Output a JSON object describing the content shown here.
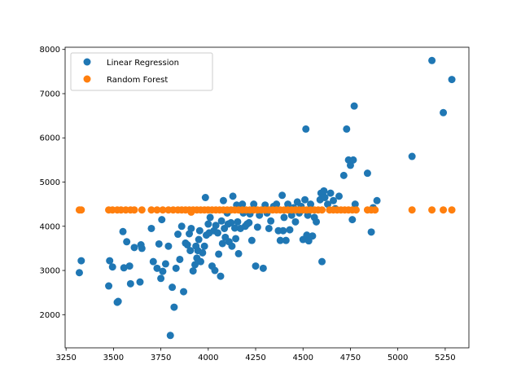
{
  "chart_data": {
    "type": "scatter",
    "title": "",
    "xlabel": "",
    "ylabel": "",
    "xlim": [
      3245,
      5375
    ],
    "ylim": [
      1250,
      8050
    ],
    "x_ticks": [
      3250,
      3500,
      3750,
      4000,
      4250,
      4500,
      4750,
      5000,
      5250
    ],
    "y_ticks": [
      2000,
      3000,
      4000,
      5000,
      6000,
      7000,
      8000
    ],
    "grid": false,
    "legend_position": "upper-left",
    "series": [
      {
        "name": "Linear Regression",
        "color": "#1f77b4",
        "points": [
          [
            3320,
            2950
          ],
          [
            3330,
            3220
          ],
          [
            3475,
            2650
          ],
          [
            3480,
            3220
          ],
          [
            3495,
            3080
          ],
          [
            3520,
            2280
          ],
          [
            3525,
            2300
          ],
          [
            3550,
            3880
          ],
          [
            3555,
            3060
          ],
          [
            3570,
            3650
          ],
          [
            3585,
            3100
          ],
          [
            3590,
            2700
          ],
          [
            3610,
            3520
          ],
          [
            3640,
            2740
          ],
          [
            3645,
            3580
          ],
          [
            3650,
            3500
          ],
          [
            3700,
            3950
          ],
          [
            3710,
            3200
          ],
          [
            3730,
            3050
          ],
          [
            3740,
            3600
          ],
          [
            3750,
            2820
          ],
          [
            3755,
            4150
          ],
          [
            3760,
            2980
          ],
          [
            3775,
            3150
          ],
          [
            3790,
            3550
          ],
          [
            3800,
            1530
          ],
          [
            3810,
            2620
          ],
          [
            3820,
            2170
          ],
          [
            3830,
            3050
          ],
          [
            3840,
            3820
          ],
          [
            3850,
            3250
          ],
          [
            3860,
            4000
          ],
          [
            3870,
            2520
          ],
          [
            3880,
            3620
          ],
          [
            3890,
            3580
          ],
          [
            3900,
            3830
          ],
          [
            3905,
            3450
          ],
          [
            3910,
            3950
          ],
          [
            3920,
            2990
          ],
          [
            3930,
            3130
          ],
          [
            3935,
            3550
          ],
          [
            3940,
            3280
          ],
          [
            3945,
            3450
          ],
          [
            3950,
            3700
          ],
          [
            3955,
            3900
          ],
          [
            3960,
            3200
          ],
          [
            3970,
            3400
          ],
          [
            3980,
            3550
          ],
          [
            3985,
            4650
          ],
          [
            3990,
            3800
          ],
          [
            4000,
            4050
          ],
          [
            4005,
            3850
          ],
          [
            4010,
            4200
          ],
          [
            4020,
            3100
          ],
          [
            4030,
            3900
          ],
          [
            4035,
            3000
          ],
          [
            4040,
            4020
          ],
          [
            4050,
            3850
          ],
          [
            4055,
            3370
          ],
          [
            4065,
            2870
          ],
          [
            4070,
            4120
          ],
          [
            4075,
            3610
          ],
          [
            4080,
            4580
          ],
          [
            4085,
            3950
          ],
          [
            4090,
            3750
          ],
          [
            4100,
            4300
          ],
          [
            4105,
            4050
          ],
          [
            4110,
            3650
          ],
          [
            4120,
            4080
          ],
          [
            4125,
            3550
          ],
          [
            4130,
            4680
          ],
          [
            4140,
            3960
          ],
          [
            4145,
            3720
          ],
          [
            4150,
            4480
          ],
          [
            4155,
            4100
          ],
          [
            4160,
            3380
          ],
          [
            4170,
            3950
          ],
          [
            4180,
            4500
          ],
          [
            4185,
            4300
          ],
          [
            4195,
            4000
          ],
          [
            4205,
            4050
          ],
          [
            4215,
            4080
          ],
          [
            4220,
            4280
          ],
          [
            4230,
            3680
          ],
          [
            4240,
            4500
          ],
          [
            4250,
            3100
          ],
          [
            4260,
            3980
          ],
          [
            4270,
            4250
          ],
          [
            4290,
            3050
          ],
          [
            4300,
            4480
          ],
          [
            4310,
            4300
          ],
          [
            4320,
            3950
          ],
          [
            4330,
            4120
          ],
          [
            4345,
            4450
          ],
          [
            4360,
            4500
          ],
          [
            4370,
            3900
          ],
          [
            4380,
            3680
          ],
          [
            4390,
            4700
          ],
          [
            4395,
            3900
          ],
          [
            4400,
            4200
          ],
          [
            4410,
            3680
          ],
          [
            4420,
            4500
          ],
          [
            4430,
            3920
          ],
          [
            4440,
            4250
          ],
          [
            4450,
            4420
          ],
          [
            4460,
            4100
          ],
          [
            4470,
            4550
          ],
          [
            4480,
            4300
          ],
          [
            4490,
            4450
          ],
          [
            4500,
            3700
          ],
          [
            4510,
            4600
          ],
          [
            4515,
            6200
          ],
          [
            4520,
            3800
          ],
          [
            4525,
            4250
          ],
          [
            4530,
            3670
          ],
          [
            4540,
            4500
          ],
          [
            4550,
            3780
          ],
          [
            4560,
            4200
          ],
          [
            4570,
            4100
          ],
          [
            4590,
            4600
          ],
          [
            4595,
            4750
          ],
          [
            4600,
            3200
          ],
          [
            4605,
            4700
          ],
          [
            4610,
            4800
          ],
          [
            4615,
            4650
          ],
          [
            4630,
            4500
          ],
          [
            4645,
            4750
          ],
          [
            4660,
            4580
          ],
          [
            4670,
            4400
          ],
          [
            4690,
            4680
          ],
          [
            4715,
            5150
          ],
          [
            4730,
            6200
          ],
          [
            4740,
            5500
          ],
          [
            4750,
            5380
          ],
          [
            4760,
            4150
          ],
          [
            4765,
            5500
          ],
          [
            4770,
            6720
          ],
          [
            4775,
            4500
          ],
          [
            4840,
            5200
          ],
          [
            4860,
            3870
          ],
          [
            4870,
            4420
          ],
          [
            4890,
            4580
          ],
          [
            5075,
            5580
          ],
          [
            5180,
            7750
          ],
          [
            5240,
            6570
          ],
          [
            5285,
            7320
          ]
        ]
      },
      {
        "name": "Random Forest",
        "color": "#ff7f0e",
        "points": [
          [
            3320,
            4370
          ],
          [
            3330,
            4370
          ],
          [
            3475,
            4370
          ],
          [
            3495,
            4370
          ],
          [
            3520,
            4370
          ],
          [
            3540,
            4370
          ],
          [
            3565,
            4370
          ],
          [
            3590,
            4370
          ],
          [
            3610,
            4370
          ],
          [
            3650,
            4370
          ],
          [
            3700,
            4370
          ],
          [
            3730,
            4370
          ],
          [
            3760,
            4370
          ],
          [
            3790,
            4370
          ],
          [
            3815,
            4370
          ],
          [
            3840,
            4370
          ],
          [
            3860,
            4370
          ],
          [
            3880,
            4370
          ],
          [
            3900,
            4370
          ],
          [
            3910,
            4320
          ],
          [
            3920,
            4370
          ],
          [
            3940,
            4370
          ],
          [
            3960,
            4370
          ],
          [
            3980,
            4370
          ],
          [
            4000,
            4370
          ],
          [
            4020,
            4370
          ],
          [
            4040,
            4370
          ],
          [
            4060,
            4370
          ],
          [
            4080,
            4370
          ],
          [
            4100,
            4370
          ],
          [
            4120,
            4370
          ],
          [
            4140,
            4370
          ],
          [
            4160,
            4370
          ],
          [
            4180,
            4370
          ],
          [
            4200,
            4370
          ],
          [
            4220,
            4370
          ],
          [
            4240,
            4370
          ],
          [
            4260,
            4370
          ],
          [
            4280,
            4370
          ],
          [
            4300,
            4370
          ],
          [
            4320,
            4370
          ],
          [
            4340,
            4370
          ],
          [
            4360,
            4370
          ],
          [
            4380,
            4370
          ],
          [
            4400,
            4370
          ],
          [
            4420,
            4370
          ],
          [
            4440,
            4370
          ],
          [
            4460,
            4370
          ],
          [
            4480,
            4370
          ],
          [
            4500,
            4370
          ],
          [
            4520,
            4370
          ],
          [
            4540,
            4370
          ],
          [
            4560,
            4370
          ],
          [
            4580,
            4370
          ],
          [
            4600,
            4370
          ],
          [
            4640,
            4370
          ],
          [
            4660,
            4370
          ],
          [
            4680,
            4370
          ],
          [
            4700,
            4370
          ],
          [
            4720,
            4370
          ],
          [
            4740,
            4370
          ],
          [
            4760,
            4370
          ],
          [
            4780,
            4370
          ],
          [
            4840,
            4370
          ],
          [
            4860,
            4370
          ],
          [
            4880,
            4370
          ],
          [
            5075,
            4370
          ],
          [
            5180,
            4370
          ],
          [
            5240,
            4370
          ],
          [
            5285,
            4370
          ]
        ]
      }
    ]
  }
}
